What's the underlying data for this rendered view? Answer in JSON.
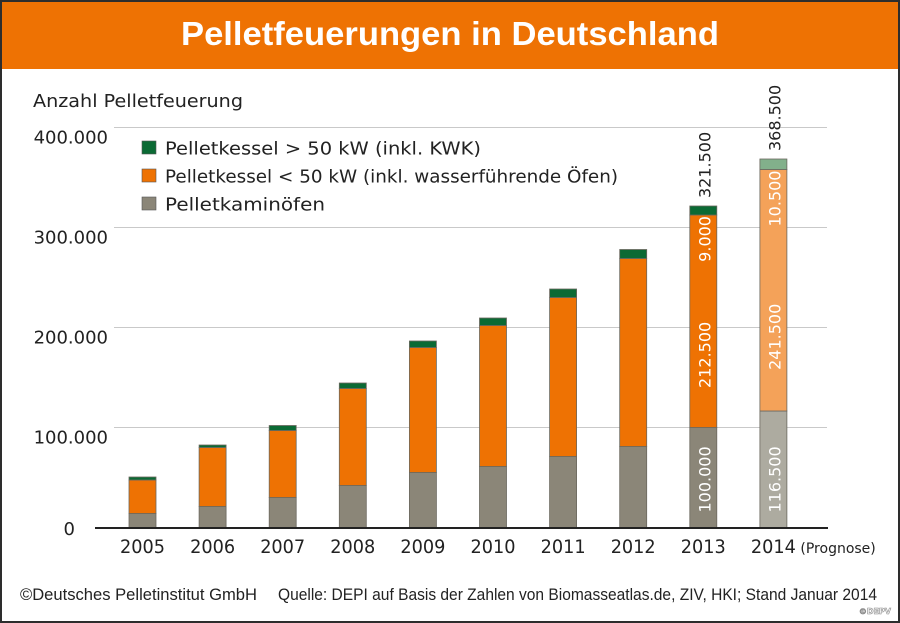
{
  "theme": {
    "accent": "#ee7203"
  },
  "header": {
    "title": "Pelletfeuerungen in Deutschland"
  },
  "chart_data": {
    "type": "bar",
    "stacked": true,
    "title": "Pelletfeuerungen in Deutschland",
    "xlabel": "",
    "ylabel": "Anzahl Pelletfeuerung",
    "ylim": [
      0,
      400000
    ],
    "grid": true,
    "legend_position": "top-left",
    "yticks": [
      {
        "value": 0,
        "label": "0"
      },
      {
        "value": 100000,
        "label": "100.000"
      },
      {
        "value": 200000,
        "label": "200.000"
      },
      {
        "value": 300000,
        "label": "300.000"
      },
      {
        "value": 400000,
        "label": "400.000"
      }
    ],
    "categories": [
      "2005",
      "2006",
      "2007",
      "2008",
      "2009",
      "2010",
      "2011",
      "2012",
      "2013",
      "2014"
    ],
    "forecast_category": "2014",
    "forecast_note": "(Prognose)",
    "series": [
      {
        "name": "Pelletkaminöfen",
        "color": "#8b8678",
        "forecast_color": "#adaba0",
        "values": [
          14000,
          21000,
          30000,
          42000,
          55000,
          61000,
          71000,
          81000,
          100000,
          116500
        ]
      },
      {
        "name": "Pelletkessel < 50 kW (inkl. wasserführende Öfen)",
        "color": "#ee7203",
        "forecast_color": "#f4a259",
        "values": [
          33500,
          59000,
          67000,
          97000,
          125000,
          141000,
          159000,
          188000,
          212500,
          241500
        ]
      },
      {
        "name": "Pelletkessel > 50 kW (inkl. KWK)",
        "color": "#0b6a34",
        "forecast_color": "#82b08b",
        "values": [
          3000,
          2500,
          5000,
          5500,
          6500,
          7500,
          8500,
          9000,
          9000,
          10500
        ]
      }
    ],
    "legend_order": [
      2,
      1,
      0
    ],
    "data_labels": [
      {
        "category": "2013",
        "total": "321.500",
        "segments": [
          "100.000",
          "212.500",
          "9.000"
        ]
      },
      {
        "category": "2014",
        "total": "368.500",
        "segments": [
          "116.500",
          "241.500",
          "10.500"
        ]
      }
    ]
  },
  "footer": {
    "copyright": "©Deutsches Pelletinstitut GmbH",
    "source": "Quelle: DEPI auf Basis der Zahlen von Biomasseatlas.de, ZIV, HKI; Stand Januar 2014",
    "watermark": "©DEPV"
  }
}
